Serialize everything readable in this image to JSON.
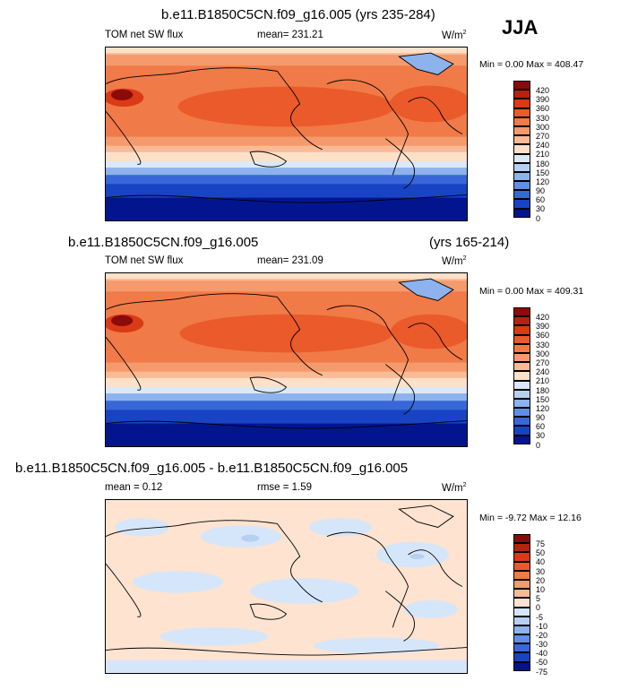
{
  "season": "JJA",
  "panels": [
    {
      "title": "b.e11.B1850C5CN.f09_g16.005 (yrs 235-284)",
      "variable": "TOM net SW flux",
      "mean_label": "mean= 231.21",
      "units": "W/m",
      "units_sup": "2",
      "minmax": "Min =   0.00 Max = 408.47",
      "levels": [
        "420",
        "390",
        "360",
        "330",
        "300",
        "270",
        "240",
        "210",
        "180",
        "150",
        "120",
        "90",
        "60",
        "30",
        "0"
      ]
    },
    {
      "title": "b.e11.B1850C5CN.f09_g16.005",
      "years": "(yrs 165-214)",
      "variable": "TOM net SW flux",
      "mean_label": "mean= 231.09",
      "units": "W/m",
      "units_sup": "2",
      "minmax": "Min =   0.00 Max = 409.31",
      "levels": [
        "420",
        "390",
        "360",
        "330",
        "300",
        "270",
        "240",
        "210",
        "180",
        "150",
        "120",
        "90",
        "60",
        "30",
        "0"
      ]
    },
    {
      "title": "b.e11.B1850C5CN.f09_g16.005 - b.e11.B1850C5CN.f09_g16.005",
      "mean_label": "mean =   0.12",
      "rmse_label": "rmse =   1.59",
      "units": "W/m",
      "units_sup": "2",
      "minmax": "Min =  -9.72 Max =  12.16",
      "levels": [
        "75",
        "50",
        "40",
        "30",
        "20",
        "10",
        "5",
        "0",
        "-5",
        "-10",
        "-20",
        "-30",
        "-40",
        "-50",
        "-75"
      ]
    }
  ],
  "colors": {
    "abs_scale": [
      "#8b0a0a",
      "#b5220f",
      "#d93a17",
      "#eb5a2b",
      "#f07a48",
      "#f59a6c",
      "#f9bb95",
      "#fde0c8",
      "#dbe8f7",
      "#b6d0f2",
      "#8db2ec",
      "#5f8ee4",
      "#3867d8",
      "#1843c4",
      "#02158f"
    ],
    "diff_scale": [
      "#8b0a0a",
      "#b5220f",
      "#d93a17",
      "#eb5a2b",
      "#f07a48",
      "#f59a6c",
      "#f9bb95",
      "#fde3d0",
      "#d6e6fa",
      "#b6d0f2",
      "#8db2ec",
      "#5f8ee4",
      "#3867d8",
      "#1843c4",
      "#02158f"
    ]
  }
}
